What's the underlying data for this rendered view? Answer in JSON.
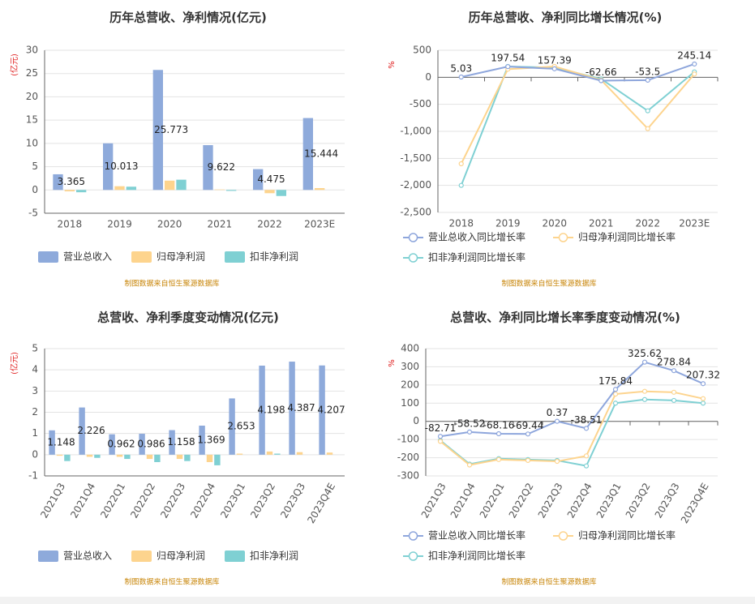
{
  "chart_data": [
    {
      "type": "bar",
      "title": "历年总营收、净利情况(亿元)",
      "y_label": "(亿元)",
      "source": "制图数据来自恒生聚源数据库",
      "categories": [
        "2018",
        "2019",
        "2020",
        "2021",
        "2022",
        "2023E"
      ],
      "ylim": [
        -5,
        30
      ],
      "yticks": [
        -5,
        0,
        5,
        10,
        15,
        20,
        25,
        30
      ],
      "grid": true,
      "series": [
        {
          "name": "营业总收入",
          "color": "#8eaadb",
          "labels": true,
          "values": [
            3.365,
            10.013,
            25.773,
            9.622,
            4.475,
            15.444
          ]
        },
        {
          "name": "归母净利润",
          "color": "#fdd48e",
          "values": [
            -0.3,
            0.8,
            2.0,
            0.1,
            -0.7,
            0.4
          ]
        },
        {
          "name": "扣非净利润",
          "color": "#7fd0d3",
          "values": [
            -0.5,
            0.7,
            2.2,
            -0.2,
            -1.3,
            null
          ]
        }
      ]
    },
    {
      "type": "line",
      "title": "历年总营收、净利同比增长情况(%)",
      "y_label": "%",
      "source": "制图数据来自恒生聚源数据库",
      "categories": [
        "2018",
        "2019",
        "2020",
        "2021",
        "2022",
        "2023E"
      ],
      "ylim": [
        -2500,
        500
      ],
      "yticks": [
        {
          "value": -2500,
          "label": "-2,500"
        },
        {
          "value": -2000,
          "label": "-2,000"
        },
        {
          "value": -1500,
          "label": "-1,500"
        },
        {
          "value": -1000,
          "label": "-1,000"
        },
        -500,
        0,
        500
      ],
      "grid": true,
      "series": [
        {
          "name": "营业总收入同比增长率",
          "color": "#8ea6dc",
          "labels": true,
          "values": [
            5.03,
            197.54,
            157.39,
            -62.66,
            -53.5,
            245.14
          ]
        },
        {
          "name": "归母净利润同比增长率",
          "color": "#fdd48e",
          "values": [
            -1600,
            150,
            200,
            -50,
            -950,
            60
          ]
        },
        {
          "name": "扣非净利润同比增长率",
          "color": "#7fd0d3",
          "values": [
            -2000,
            200,
            180,
            -30,
            -620,
            100
          ]
        }
      ]
    },
    {
      "type": "bar",
      "title": "总营收、净利季度变动情况(亿元)",
      "y_label": "(亿元)",
      "source": "制图数据来自恒生聚源数据库",
      "categories": [
        "2021Q3",
        "2021Q4",
        "2022Q1",
        "2022Q2",
        "2022Q3",
        "2022Q4",
        "2023Q1",
        "2023Q2",
        "2023Q3",
        "2023Q4E"
      ],
      "ylim": [
        -1,
        5
      ],
      "yticks": [
        -1,
        0,
        1,
        2,
        3,
        4,
        5
      ],
      "grid": true,
      "series": [
        {
          "name": "营业总收入",
          "color": "#8eaadb",
          "labels": true,
          "values": [
            1.148,
            2.226,
            0.962,
            0.986,
            1.158,
            1.369,
            2.653,
            4.198,
            4.387,
            4.207
          ]
        },
        {
          "name": "归母净利润",
          "color": "#fdd48e",
          "values": [
            -0.05,
            -0.1,
            -0.1,
            -0.2,
            -0.2,
            -0.35,
            0.05,
            0.15,
            0.12,
            0.1
          ]
        },
        {
          "name": "扣非净利润",
          "color": "#7fd0d3",
          "values": [
            -0.3,
            -0.15,
            -0.2,
            -0.35,
            -0.3,
            -0.5,
            null,
            0.05,
            null,
            null
          ]
        }
      ]
    },
    {
      "type": "line",
      "title": "总营收、净利同比增长率季度变动情况(%)",
      "y_label": "%",
      "source": "制图数据来自恒生聚源数据库",
      "categories": [
        "2021Q3",
        "2021Q4",
        "2022Q1",
        "2022Q2",
        "2022Q3",
        "2022Q4",
        "2023Q1",
        "2023Q2",
        "2023Q3",
        "2023Q4E"
      ],
      "ylim": [
        -300,
        400
      ],
      "yticks": [
        -300,
        -200,
        -100,
        0,
        100,
        200,
        300,
        400
      ],
      "grid": true,
      "series": [
        {
          "name": "营业总收入同比增长率",
          "color": "#8ea6dc",
          "labels": true,
          "values": [
            -82.71,
            -58.52,
            -68.16,
            -69.44,
            0.37,
            -38.51,
            175.84,
            325.62,
            278.84,
            207.32
          ]
        },
        {
          "name": "归母净利润同比增长率",
          "color": "#fdd48e",
          "values": [
            -110,
            -240,
            -210,
            -215,
            -220,
            -190,
            150,
            165,
            160,
            125
          ]
        },
        {
          "name": "扣非净利润同比增长率",
          "color": "#7fd0d3",
          "values": [
            -105,
            -235,
            -205,
            -210,
            -215,
            -245,
            100,
            120,
            115,
            100
          ]
        }
      ]
    }
  ]
}
